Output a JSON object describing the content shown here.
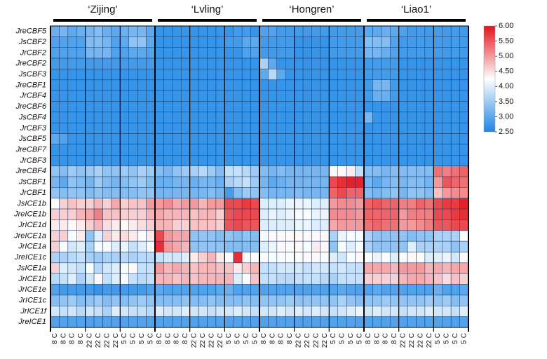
{
  "chart_data": {
    "type": "heatmap",
    "groups": [
      "‘Zijing’",
      "‘Lvling’",
      "‘Hongren’",
      "‘Liao1’"
    ],
    "rows": [
      "JreCBF5",
      "JsCBF2",
      "JrCBF2",
      "JreCBF2",
      "JsCBF3",
      "JreCBF1",
      "JrCBF4",
      "JreCBF6",
      "JsCBF4",
      "JrCBF3",
      "JsCBF5",
      "JreCBF7",
      "JrCBF3",
      "JreCBF4",
      "JsCBF1",
      "JrCBF1",
      "JsICE1b",
      "JreICE1b",
      "JrICE1d",
      "JreICE1a",
      "JrICE1a",
      "JreICE1c",
      "JsICE1a",
      "JrICE1b",
      "JrICE1e",
      "JrICE1c",
      "JrICE1f",
      "JreICE1"
    ],
    "columns": [
      "8 C",
      "8 C",
      "8 C",
      "8 C",
      "22 C",
      "22 C",
      "22 C",
      "22 C",
      "5 C",
      "5 C",
      "5 C",
      "5 C",
      "8 C",
      "8 C",
      "8 C",
      "8 C",
      "22 C",
      "22 C",
      "22 C",
      "22 C",
      "5 C",
      "5 C",
      "5 C",
      "5 C",
      "8 C",
      "8 C",
      "8 C",
      "8 C",
      "22 C",
      "22 C",
      "22 C",
      "22 C",
      "5 C",
      "5 C",
      "5 C",
      "5 C",
      "8 C",
      "8 C",
      "8 C",
      "8 C",
      "22 C",
      "22 C",
      "22 C",
      "22 C",
      "5 C",
      "5 C",
      "5 C",
      "5 C"
    ],
    "values": [
      [
        3.1,
        3.2,
        3.0,
        3.1,
        3.2,
        3.3,
        3.1,
        3.0,
        3.1,
        3.2,
        3.2,
        3.0,
        2.7,
        2.7,
        2.7,
        2.7,
        2.7,
        2.7,
        2.7,
        2.7,
        2.7,
        2.8,
        2.8,
        2.7,
        2.9,
        2.9,
        2.8,
        2.8,
        2.8,
        2.8,
        2.8,
        2.8,
        2.8,
        2.8,
        2.8,
        2.8,
        3.0,
        3.0,
        3.1,
        3.0,
        2.9,
        2.8,
        2.8,
        2.8,
        2.8,
        2.8,
        2.8,
        2.8
      ],
      [
        2.9,
        2.9,
        2.9,
        2.9,
        3.3,
        3.3,
        3.2,
        2.9,
        3.0,
        3.4,
        3.4,
        3.0,
        2.7,
        2.7,
        2.7,
        2.7,
        2.7,
        2.7,
        2.7,
        2.7,
        2.8,
        2.8,
        3.0,
        3.0,
        2.8,
        2.8,
        2.8,
        2.8,
        2.7,
        2.7,
        2.7,
        2.7,
        2.8,
        2.8,
        2.8,
        2.8,
        3.3,
        3.3,
        3.3,
        2.9,
        2.8,
        2.8,
        2.8,
        2.8,
        2.8,
        2.8,
        2.8,
        2.8
      ],
      [
        2.9,
        2.9,
        2.9,
        2.9,
        3.2,
        3.2,
        3.2,
        2.9,
        2.9,
        3.0,
        3.0,
        2.9,
        2.7,
        2.7,
        2.7,
        2.7,
        2.7,
        2.7,
        2.7,
        2.7,
        2.7,
        2.7,
        2.9,
        2.9,
        2.8,
        2.8,
        2.8,
        2.8,
        2.7,
        2.7,
        2.7,
        2.7,
        2.8,
        2.8,
        2.8,
        2.8,
        3.2,
        3.2,
        3.1,
        2.9,
        2.8,
        2.8,
        2.8,
        2.8,
        2.8,
        2.8,
        2.8,
        2.8
      ],
      [
        2.8,
        2.8,
        2.8,
        2.8,
        2.8,
        2.8,
        2.8,
        2.8,
        2.8,
        2.8,
        2.8,
        2.8,
        2.7,
        2.7,
        2.7,
        2.7,
        2.7,
        2.7,
        2.7,
        2.7,
        2.7,
        2.7,
        2.7,
        2.7,
        3.6,
        3.0,
        2.7,
        2.7,
        2.7,
        2.7,
        2.7,
        2.7,
        2.7,
        2.7,
        2.7,
        2.7,
        2.8,
        2.8,
        2.8,
        2.8,
        2.7,
        2.7,
        2.7,
        2.7,
        2.7,
        2.7,
        2.7,
        2.7
      ],
      [
        2.7,
        2.7,
        2.7,
        2.7,
        2.7,
        2.7,
        2.7,
        2.7,
        2.7,
        2.7,
        2.7,
        2.7,
        2.7,
        2.7,
        2.7,
        2.7,
        2.7,
        2.7,
        2.7,
        2.7,
        2.7,
        2.7,
        2.7,
        2.7,
        3.0,
        3.7,
        3.0,
        2.7,
        2.7,
        2.7,
        2.7,
        2.7,
        2.7,
        2.7,
        2.7,
        2.7,
        2.8,
        2.8,
        2.8,
        2.8,
        2.7,
        2.7,
        2.7,
        2.7,
        2.7,
        2.7,
        2.7,
        2.7
      ],
      [
        2.7,
        2.7,
        2.7,
        2.7,
        2.7,
        2.7,
        2.7,
        2.7,
        2.7,
        2.7,
        2.7,
        2.7,
        2.7,
        2.7,
        2.7,
        2.7,
        2.7,
        2.7,
        2.7,
        2.7,
        2.7,
        2.7,
        2.7,
        2.7,
        2.7,
        2.7,
        2.7,
        2.7,
        2.7,
        2.7,
        2.7,
        2.7,
        2.7,
        2.7,
        2.7,
        2.7,
        2.8,
        3.2,
        3.2,
        2.8,
        2.7,
        2.7,
        2.7,
        2.7,
        2.7,
        2.7,
        2.7,
        2.7
      ],
      [
        2.7,
        2.7,
        2.7,
        2.7,
        2.7,
        2.7,
        2.7,
        2.7,
        2.7,
        2.7,
        2.7,
        2.7,
        2.7,
        2.7,
        2.7,
        2.7,
        2.7,
        2.7,
        2.7,
        2.7,
        2.7,
        2.7,
        2.7,
        2.7,
        2.7,
        2.7,
        2.7,
        2.7,
        2.7,
        2.7,
        2.7,
        2.7,
        2.7,
        2.7,
        2.7,
        2.7,
        2.8,
        3.1,
        3.1,
        2.8,
        2.7,
        2.7,
        2.7,
        2.7,
        2.7,
        2.7,
        2.7,
        2.7
      ],
      [
        2.7,
        2.7,
        2.7,
        2.7,
        2.7,
        2.7,
        2.7,
        2.7,
        2.7,
        2.7,
        2.7,
        2.7,
        2.7,
        2.7,
        2.7,
        2.7,
        2.7,
        2.7,
        2.7,
        2.7,
        2.7,
        2.7,
        2.7,
        2.7,
        2.7,
        2.7,
        2.7,
        2.7,
        2.7,
        2.7,
        2.7,
        2.7,
        2.7,
        2.7,
        2.7,
        2.7,
        2.7,
        2.7,
        2.7,
        2.7,
        2.7,
        2.7,
        2.7,
        2.7,
        2.7,
        2.7,
        2.7,
        2.7
      ],
      [
        2.7,
        2.7,
        2.7,
        2.7,
        2.7,
        2.7,
        2.7,
        2.7,
        2.7,
        2.7,
        2.7,
        2.7,
        2.7,
        2.7,
        2.7,
        2.7,
        2.7,
        2.7,
        2.7,
        2.7,
        2.7,
        2.7,
        2.7,
        2.7,
        2.7,
        2.7,
        2.7,
        2.7,
        2.7,
        2.7,
        2.7,
        2.7,
        2.7,
        2.7,
        2.7,
        2.7,
        3.2,
        2.7,
        2.7,
        2.7,
        2.7,
        2.7,
        2.7,
        2.7,
        2.7,
        2.7,
        2.7,
        2.7
      ],
      [
        2.7,
        2.7,
        2.7,
        2.7,
        2.7,
        2.7,
        2.7,
        2.7,
        2.7,
        2.7,
        2.7,
        2.7,
        2.7,
        2.7,
        2.7,
        2.7,
        2.7,
        2.7,
        2.7,
        2.7,
        2.7,
        2.7,
        2.7,
        2.7,
        2.7,
        2.7,
        2.7,
        2.7,
        2.7,
        2.7,
        2.7,
        2.7,
        2.7,
        2.7,
        2.7,
        2.7,
        2.7,
        2.7,
        2.7,
        2.7,
        2.7,
        2.7,
        2.7,
        2.7,
        2.7,
        2.7,
        2.7,
        2.7
      ],
      [
        3.0,
        2.9,
        2.7,
        2.7,
        2.7,
        2.7,
        2.7,
        2.7,
        2.7,
        2.7,
        2.7,
        2.7,
        2.7,
        2.7,
        2.7,
        2.7,
        2.7,
        2.7,
        2.7,
        2.7,
        2.7,
        2.7,
        2.7,
        2.7,
        2.7,
        2.7,
        2.7,
        2.7,
        2.7,
        2.7,
        2.7,
        2.7,
        2.7,
        2.7,
        2.7,
        2.7,
        2.7,
        2.7,
        2.7,
        2.7,
        2.7,
        2.7,
        2.7,
        2.7,
        2.7,
        2.7,
        2.7,
        2.7
      ],
      [
        2.7,
        2.7,
        2.7,
        2.7,
        2.7,
        2.7,
        2.7,
        2.7,
        2.7,
        2.7,
        2.7,
        2.7,
        2.7,
        2.7,
        2.7,
        2.7,
        2.7,
        2.7,
        2.7,
        2.7,
        2.7,
        2.7,
        2.7,
        2.7,
        2.7,
        2.7,
        2.7,
        2.7,
        2.7,
        2.7,
        2.7,
        2.7,
        2.7,
        2.7,
        2.7,
        2.7,
        2.7,
        2.7,
        2.7,
        2.7,
        2.7,
        2.7,
        2.7,
        2.7,
        2.7,
        2.7,
        2.7,
        2.7
      ],
      [
        2.7,
        2.7,
        2.7,
        2.7,
        2.7,
        2.7,
        2.7,
        2.7,
        2.7,
        2.7,
        2.7,
        2.7,
        2.7,
        2.7,
        2.7,
        2.7,
        2.7,
        2.7,
        2.7,
        2.7,
        2.7,
        2.7,
        2.7,
        2.7,
        2.7,
        2.7,
        2.7,
        2.7,
        2.7,
        2.7,
        2.7,
        2.7,
        2.7,
        2.7,
        2.7,
        2.7,
        2.7,
        2.7,
        2.7,
        2.7,
        2.7,
        2.7,
        2.7,
        2.7,
        2.7,
        2.7,
        2.7,
        2.7
      ],
      [
        3.4,
        3.3,
        3.5,
        3.4,
        3.5,
        3.6,
        3.4,
        3.4,
        3.5,
        3.4,
        3.6,
        3.5,
        3.3,
        3.2,
        3.4,
        3.5,
        3.6,
        3.7,
        3.5,
        3.3,
        3.8,
        3.8,
        3.7,
        3.5,
        3.3,
        3.2,
        3.3,
        3.2,
        3.2,
        3.2,
        3.2,
        3.2,
        4.3,
        4.3,
        4.4,
        3.8,
        3.3,
        3.3,
        3.2,
        3.3,
        3.3,
        3.3,
        3.3,
        3.3,
        5.3,
        5.2,
        5.3,
        5.4
      ],
      [
        3.2,
        3.0,
        3.4,
        3.3,
        3.2,
        3.5,
        3.3,
        3.2,
        3.3,
        3.4,
        3.5,
        3.3,
        3.1,
        3.1,
        3.2,
        3.2,
        3.1,
        3.2,
        3.2,
        3.1,
        3.6,
        3.7,
        3.8,
        3.5,
        3.2,
        3.0,
        3.1,
        3.2,
        3.2,
        3.2,
        3.2,
        3.2,
        5.6,
        5.8,
        5.9,
        5.9,
        3.2,
        3.0,
        3.2,
        3.3,
        3.2,
        3.3,
        3.3,
        3.2,
        5.0,
        5.5,
        5.4,
        5.3
      ],
      [
        3.4,
        3.3,
        3.4,
        3.4,
        3.3,
        3.4,
        3.3,
        3.3,
        3.3,
        3.3,
        3.4,
        3.4,
        3.2,
        3.2,
        3.2,
        3.2,
        3.2,
        3.2,
        3.3,
        3.2,
        2.8,
        3.3,
        3.5,
        3.4,
        3.3,
        3.2,
        3.2,
        3.2,
        3.3,
        3.2,
        3.2,
        3.2,
        5.4,
        5.6,
        5.4,
        5.4,
        3.3,
        3.2,
        3.3,
        3.4,
        3.2,
        3.4,
        3.4,
        3.3,
        4.7,
        5.0,
        5.1,
        5.1
      ],
      [
        4.2,
        4.6,
        4.7,
        4.6,
        4.6,
        4.8,
        4.6,
        4.9,
        4.6,
        4.7,
        4.7,
        5.0,
        5.0,
        5.1,
        4.9,
        5.0,
        5.0,
        4.8,
        5.0,
        5.0,
        5.6,
        5.6,
        5.7,
        5.6,
        4.0,
        4.0,
        4.0,
        4.1,
        4.1,
        4.1,
        4.0,
        4.0,
        5.0,
        5.1,
        5.1,
        5.0,
        5.4,
        5.5,
        5.4,
        5.4,
        5.2,
        5.2,
        5.4,
        5.3,
        5.6,
        5.7,
        5.7,
        5.9
      ],
      [
        4.6,
        4.6,
        4.6,
        4.8,
        4.9,
        5.2,
        4.7,
        4.7,
        4.6,
        4.6,
        4.6,
        4.8,
        4.9,
        4.8,
        4.8,
        4.8,
        4.7,
        4.8,
        4.8,
        4.6,
        5.5,
        5.6,
        5.6,
        5.6,
        4.0,
        4.1,
        4.0,
        4.1,
        4.2,
        4.2,
        4.1,
        4.1,
        5.1,
        5.1,
        5.1,
        5.0,
        5.4,
        5.4,
        5.4,
        5.4,
        5.0,
        5.2,
        5.2,
        5.2,
        5.6,
        5.6,
        5.7,
        5.8
      ],
      [
        4.4,
        4.4,
        4.3,
        4.4,
        4.6,
        4.8,
        4.5,
        4.4,
        4.3,
        4.4,
        4.5,
        4.6,
        4.8,
        4.8,
        4.6,
        4.6,
        4.7,
        4.7,
        4.7,
        4.6,
        5.5,
        5.6,
        5.5,
        5.5,
        4.0,
        4.0,
        4.0,
        4.0,
        4.1,
        4.1,
        4.0,
        4.0,
        4.9,
        5.0,
        5.0,
        5.0,
        5.3,
        5.4,
        5.3,
        5.3,
        5.0,
        5.0,
        5.1,
        5.2,
        5.5,
        5.5,
        5.6,
        5.6
      ],
      [
        4.6,
        4.6,
        4.2,
        4.4,
        3.4,
        4.0,
        4.6,
        4.4,
        4.5,
        4.4,
        4.3,
        4.4,
        5.6,
        5.0,
        4.9,
        4.9,
        3.4,
        3.4,
        3.4,
        3.3,
        3.4,
        3.3,
        3.4,
        3.3,
        4.2,
        4.3,
        4.3,
        4.3,
        4.3,
        4.3,
        4.3,
        4.3,
        3.6,
        4.1,
        4.2,
        4.2,
        3.6,
        3.4,
        3.4,
        3.4,
        3.4,
        3.3,
        3.4,
        3.4,
        3.6,
        3.6,
        3.6,
        4.2
      ],
      [
        4.6,
        4.2,
        3.9,
        4.0,
        3.6,
        4.2,
        4.2,
        4.0,
        4.1,
        3.8,
        4.0,
        4.2,
        5.8,
        5.0,
        4.9,
        4.8,
        3.4,
        3.4,
        3.4,
        3.4,
        3.3,
        3.3,
        3.3,
        3.3,
        4.0,
        4.1,
        4.3,
        4.2,
        4.3,
        4.2,
        4.4,
        4.3,
        3.4,
        4.2,
        4.0,
        4.2,
        3.6,
        3.4,
        3.4,
        3.4,
        3.4,
        4.0,
        3.6,
        3.6,
        3.6,
        3.6,
        3.4,
        3.6
      ],
      [
        3.6,
        3.6,
        3.7,
        3.8,
        3.6,
        3.5,
        3.6,
        3.6,
        3.7,
        3.6,
        3.7,
        3.7,
        3.8,
        3.9,
        3.9,
        4.0,
        4.4,
        4.6,
        4.8,
        4.4,
        4.2,
        5.8,
        4.3,
        4.2,
        4.2,
        4.2,
        4.2,
        4.2,
        4.2,
        4.3,
        4.3,
        4.2,
        4.0,
        3.9,
        4.2,
        4.3,
        4.2,
        4.1,
        4.2,
        4.0,
        4.2,
        4.3,
        4.2,
        4.0,
        4.0,
        4.1,
        3.9,
        4.3
      ],
      [
        4.6,
        4.0,
        3.9,
        3.8,
        4.2,
        3.7,
        3.9,
        4.0,
        4.2,
        4.3,
        3.8,
        3.8,
        5.0,
        4.8,
        4.9,
        4.8,
        4.7,
        4.8,
        4.8,
        4.7,
        4.7,
        4.4,
        4.6,
        4.8,
        3.8,
        3.8,
        3.9,
        3.9,
        3.9,
        3.8,
        3.9,
        3.9,
        3.8,
        3.9,
        3.8,
        3.8,
        4.9,
        4.9,
        4.9,
        4.8,
        5.0,
        5.0,
        5.0,
        4.8,
        4.9,
        4.8,
        4.9,
        4.9
      ],
      [
        3.7,
        3.8,
        4.0,
        3.6,
        3.9,
        4.3,
        3.8,
        4.0,
        4.2,
        3.8,
        3.7,
        3.8,
        4.8,
        4.8,
        4.7,
        4.8,
        4.7,
        4.8,
        4.8,
        4.8,
        4.8,
        4.0,
        4.2,
        4.7,
        3.8,
        3.8,
        3.7,
        3.7,
        3.8,
        3.8,
        3.8,
        3.7,
        3.6,
        3.8,
        3.8,
        3.8,
        4.6,
        4.6,
        4.6,
        4.6,
        4.8,
        4.9,
        4.9,
        4.8,
        4.7,
        4.5,
        4.7,
        4.6
      ],
      [
        2.9,
        2.8,
        2.8,
        2.8,
        2.8,
        2.7,
        2.8,
        2.8,
        2.8,
        2.8,
        2.8,
        2.9,
        3.0,
        2.9,
        2.9,
        2.9,
        2.9,
        2.9,
        2.9,
        3.0,
        3.1,
        2.9,
        2.9,
        2.9,
        2.9,
        2.9,
        2.9,
        2.9,
        2.9,
        2.9,
        2.9,
        2.9,
        2.9,
        3.0,
        2.9,
        2.9,
        2.9,
        3.0,
        2.9,
        2.9,
        2.9,
        2.9,
        2.9,
        2.9,
        3.1,
        2.9,
        2.9,
        3.0
      ],
      [
        3.3,
        3.4,
        3.5,
        3.3,
        3.4,
        3.5,
        3.3,
        3.4,
        3.3,
        3.4,
        3.5,
        3.4,
        3.3,
        3.3,
        3.3,
        3.4,
        3.3,
        3.3,
        3.4,
        3.3,
        3.3,
        3.3,
        3.4,
        3.3,
        3.4,
        3.4,
        3.4,
        3.5,
        3.4,
        3.4,
        3.4,
        3.4,
        3.4,
        3.6,
        3.4,
        3.3,
        3.4,
        3.4,
        3.5,
        3.4,
        3.4,
        3.4,
        3.4,
        3.5,
        3.4,
        3.5,
        3.3,
        3.4
      ],
      [
        3.9,
        3.8,
        3.9,
        3.7,
        3.9,
        3.8,
        3.6,
        4.0,
        3.9,
        3.8,
        3.8,
        3.7,
        4.0,
        3.9,
        3.9,
        4.0,
        3.9,
        3.9,
        3.8,
        3.9,
        3.9,
        4.0,
        3.9,
        3.8,
        3.9,
        3.9,
        4.0,
        3.9,
        4.0,
        3.9,
        4.0,
        3.9,
        3.8,
        3.9,
        4.0,
        4.1,
        3.9,
        4.0,
        3.9,
        3.9,
        3.8,
        3.9,
        3.9,
        4.0,
        3.9,
        3.9,
        3.8,
        4.0
      ],
      [
        2.9,
        2.9,
        2.9,
        2.9,
        2.9,
        2.9,
        2.9,
        2.9,
        2.9,
        2.9,
        2.9,
        2.9,
        2.9,
        2.9,
        2.9,
        2.9,
        2.9,
        2.9,
        2.9,
        2.9,
        2.9,
        2.9,
        2.9,
        2.9,
        2.9,
        2.9,
        2.9,
        2.9,
        2.9,
        2.9,
        2.9,
        2.9,
        2.9,
        2.9,
        2.9,
        2.9,
        2.9,
        2.9,
        2.9,
        2.9,
        2.9,
        2.9,
        2.9,
        2.9,
        2.9,
        2.9,
        2.9,
        2.9
      ]
    ],
    "zlim": [
      2.5,
      6
    ],
    "zticks": [
      {
        "value": 6,
        "label": "6.00"
      },
      {
        "value": 5.5,
        "label": "5.50"
      },
      {
        "value": 5,
        "label": "5.00"
      },
      {
        "value": 4.5,
        "label": "4.50"
      },
      {
        "value": 4,
        "label": "4.00"
      },
      {
        "value": 3.5,
        "label": "3.50"
      },
      {
        "value": 3,
        "label": "3.00"
      },
      {
        "value": 2.5,
        "label": "2.50"
      }
    ],
    "colors": [
      "#1c86e6",
      "#ffffff",
      "#e3131b"
    ]
  }
}
